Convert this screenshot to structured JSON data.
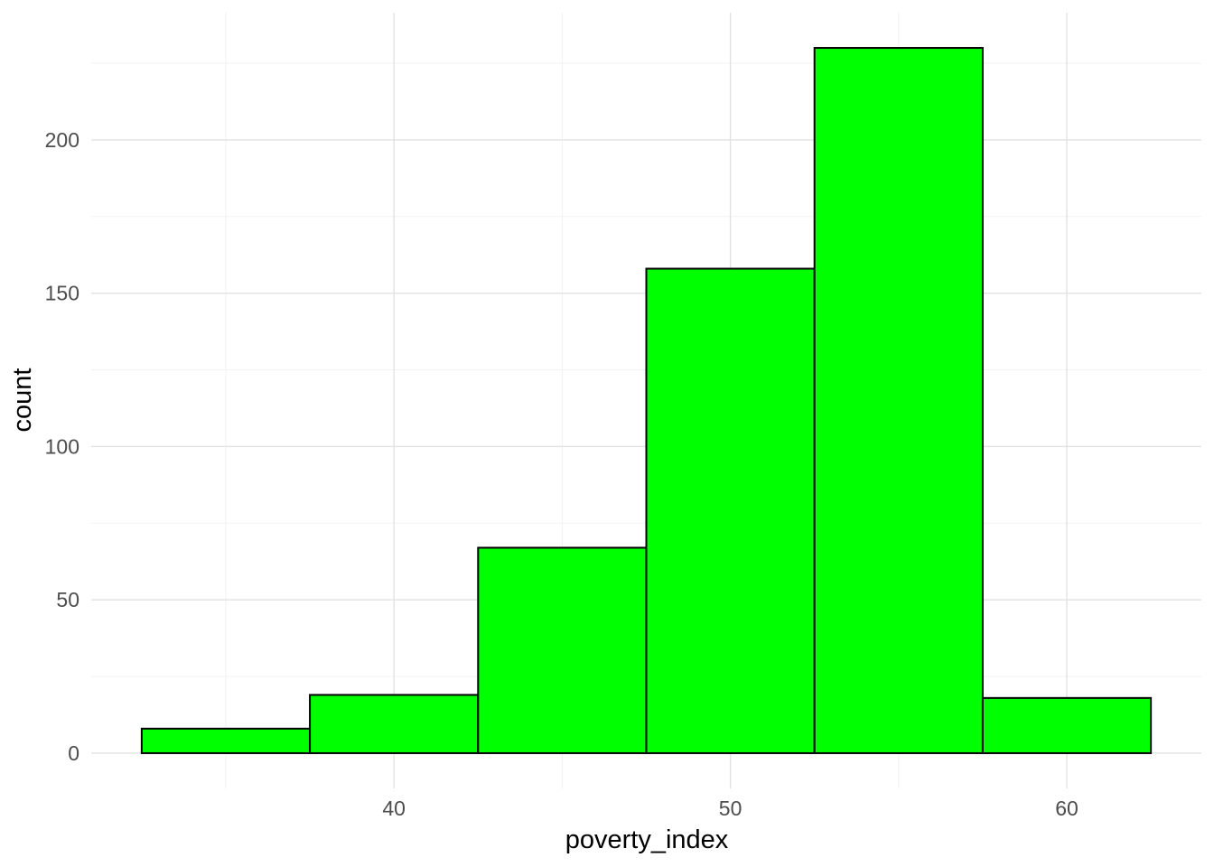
{
  "chart_data": {
    "type": "bar",
    "subtype": "histogram",
    "title": "",
    "xlabel": "poverty_index",
    "ylabel": "count",
    "bin_width": 5,
    "bin_edges": [
      32.5,
      37.5,
      42.5,
      47.5,
      52.5,
      57.5,
      62.5
    ],
    "bin_centers": [
      35,
      40,
      45,
      50,
      55,
      60
    ],
    "counts": [
      8,
      19,
      67,
      158,
      230,
      18
    ],
    "x_major_ticks": [
      40,
      50,
      60
    ],
    "x_minor_ticks": [
      35,
      45,
      55
    ],
    "y_major_ticks": [
      0,
      50,
      100,
      150,
      200
    ],
    "y_minor_ticks": [
      25,
      75,
      125,
      175,
      225
    ],
    "xlim": [
      31,
      64
    ],
    "ylim": [
      -11.5,
      241.5
    ],
    "grid": "major+minor",
    "legend": "none",
    "colors": {
      "bar_fill": "#00ff00",
      "bar_stroke": "#000000",
      "grid_major": "#e2e2e2",
      "grid_minor": "#f0f0f0",
      "tick_label": "#4d4d4d",
      "axis_title": "#000000",
      "background": "#ffffff"
    }
  }
}
